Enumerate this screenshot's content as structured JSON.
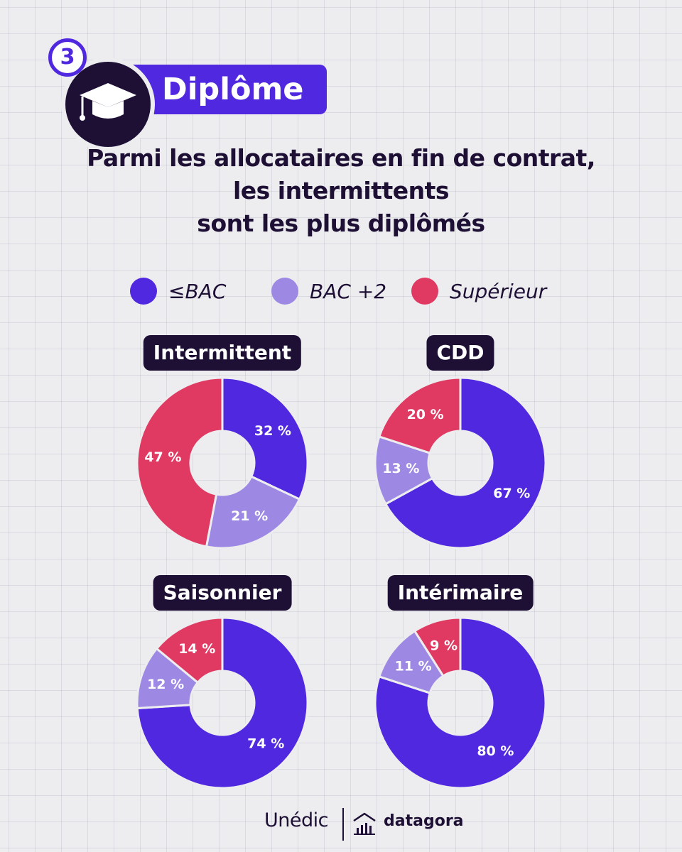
{
  "header": {
    "step": "3",
    "title": "Diplôme",
    "headline": [
      "Parmi les allocataires en fin de contrat,",
      "les intermittents",
      "sont les plus diplômés"
    ]
  },
  "icons": {
    "section": "graduation-cap-icon",
    "footer": "bar-chart-house-icon"
  },
  "colors": {
    "bac": "#5028e0",
    "bac2": "#9d89e3",
    "sup": "#e03a63",
    "dark": "#1e1035",
    "background": "#ededf0"
  },
  "legend": [
    {
      "label": "≤BAC",
      "color": "#5028e0"
    },
    {
      "label": "BAC +2",
      "color": "#9d89e3"
    },
    {
      "label": "Supérieur",
      "color": "#e03a63"
    }
  ],
  "chart_data": [
    {
      "type": "pie",
      "donut": true,
      "title": "Intermittent",
      "categories": [
        "≤BAC",
        "BAC +2",
        "Supérieur"
      ],
      "values": [
        32,
        21,
        47
      ],
      "labels": [
        "32 %",
        "21 %",
        "47 %"
      ]
    },
    {
      "type": "pie",
      "donut": true,
      "title": "CDD",
      "categories": [
        "≤BAC",
        "BAC +2",
        "Supérieur"
      ],
      "values": [
        67,
        13,
        20
      ],
      "labels": [
        "67 %",
        "13 %",
        "20 %"
      ]
    },
    {
      "type": "pie",
      "donut": true,
      "title": "Saisonnier",
      "categories": [
        "≤BAC",
        "BAC +2",
        "Supérieur"
      ],
      "values": [
        74,
        12,
        14
      ],
      "labels": [
        "74 %",
        "12 %",
        "14 %"
      ]
    },
    {
      "type": "pie",
      "donut": true,
      "title": "Intérimaire",
      "categories": [
        "≤BAC",
        "BAC +2",
        "Supérieur"
      ],
      "values": [
        80,
        11,
        9
      ],
      "labels": [
        "80 %",
        "11 %",
        "9 %"
      ]
    }
  ],
  "footer": {
    "brand": "Unédic",
    "partner": "datagora"
  }
}
